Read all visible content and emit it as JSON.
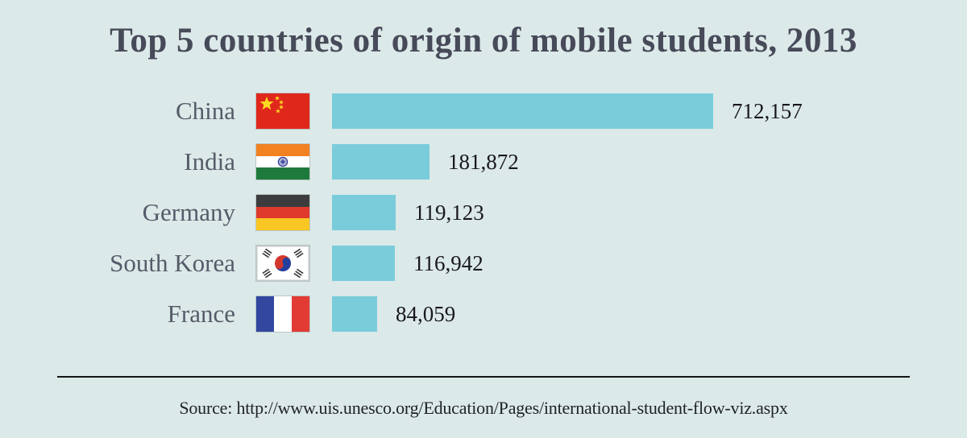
{
  "title": "Top 5 countries of origin of mobile students, 2013",
  "source_text": "Source: http://www.uis.unesco.org/Education/Pages/international-student-flow-viz.aspx",
  "colors": {
    "background": "#dce9e9",
    "bar": "#7bccda",
    "title_text": "#474a59",
    "label_text": "#555b69",
    "value_text": "#18181c",
    "divider": "#141414",
    "source_text": "#1e2127"
  },
  "chart_data": {
    "type": "bar",
    "orientation": "horizontal",
    "title": "Top 5 countries of origin of mobile students, 2013",
    "categories": [
      "China",
      "India",
      "Germany",
      "South Korea",
      "France"
    ],
    "values": [
      712157,
      181872,
      119123,
      116942,
      84059
    ],
    "value_labels": [
      "712,157",
      "181,872",
      "119,123",
      "116,942",
      "84,059"
    ],
    "xlim": [
      0,
      712157
    ],
    "grid": false,
    "legend": false,
    "flag_icons": [
      "china-flag-icon",
      "india-flag-icon",
      "germany-flag-icon",
      "south-korea-flag-icon",
      "france-flag-icon"
    ],
    "source": "Source: http://www.uis.unesco.org/Education/Pages/international-student-flow-viz.aspx"
  }
}
